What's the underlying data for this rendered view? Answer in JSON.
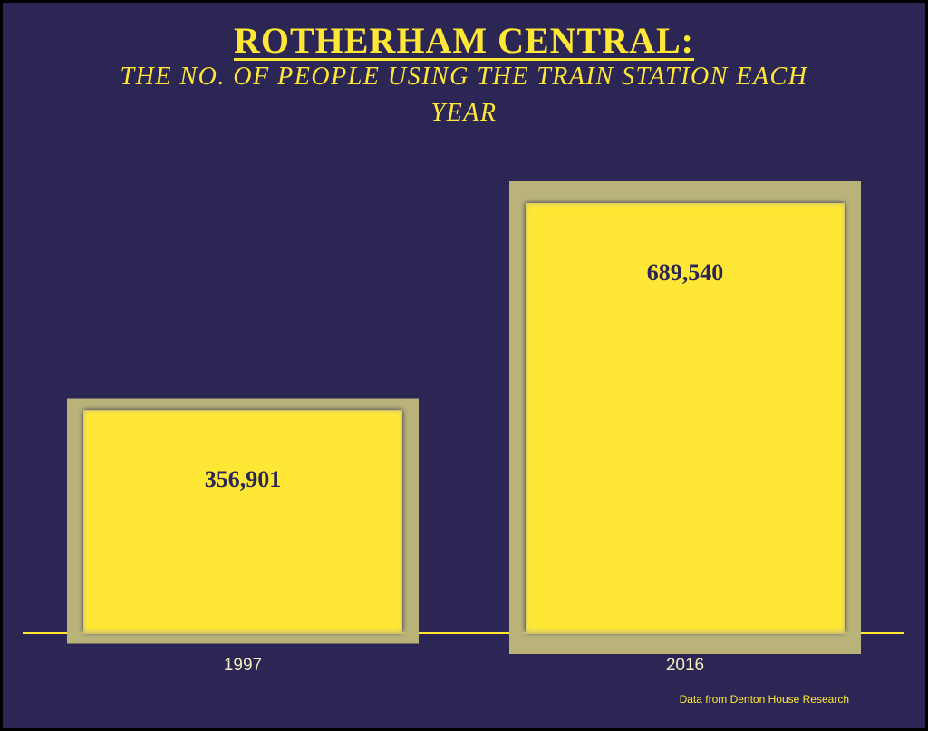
{
  "chart_data": {
    "type": "bar",
    "title": "ROTHERHAM CENTRAL:",
    "subtitle": "THE NO. OF PEOPLE USING THE TRAIN STATION EACH YEAR",
    "categories": [
      "1997",
      "2016"
    ],
    "values": [
      356901,
      689540
    ],
    "value_labels": [
      "356,901",
      "689,540"
    ],
    "color": "#ffe835",
    "source": "Data from Denton House Research"
  }
}
